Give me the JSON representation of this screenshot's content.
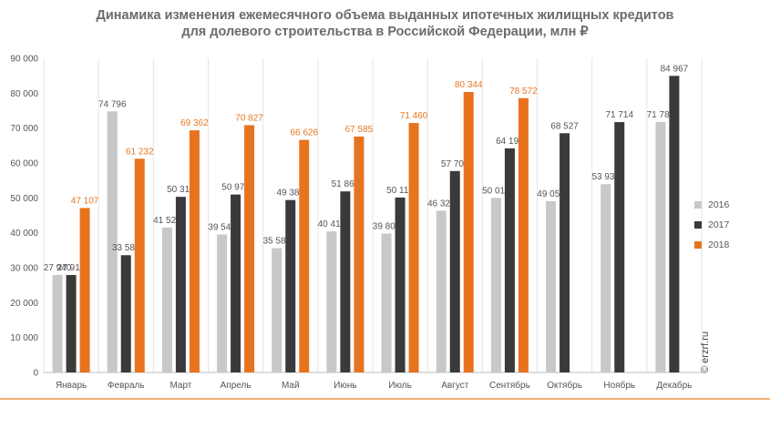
{
  "chart_data": {
    "type": "bar",
    "title_line1": "Динамика изменения ежемесячного объема выданных ипотечных жилищных кредитов",
    "title_line2": "для долевого строительства  в Российской Федерации, млн ₽",
    "categories": [
      "Январь",
      "Февраль",
      "Март",
      "Апрель",
      "Май",
      "Июнь",
      "Июль",
      "Август",
      "Сентябрь",
      "Октябрь",
      "Ноябрь",
      "Декабрь"
    ],
    "series": [
      {
        "name": "2016",
        "color": "#c8c8c8",
        "values": [
          27940,
          74796,
          41521,
          39548,
          35587,
          40414,
          39809,
          46327,
          50019,
          49058,
          53936,
          71781
        ],
        "labels": [
          "27 940",
          "74 796",
          "41 521",
          "39 548",
          "35 587",
          "40 414",
          "39 809",
          "46 327",
          "50 019",
          "49 058",
          "53 936",
          "71 781"
        ]
      },
      {
        "name": "2017",
        "color": "#3a3a3a",
        "values": [
          27910,
          33587,
          50310,
          50976,
          49389,
          51864,
          50110,
          57700,
          64190,
          68527,
          71714,
          84967
        ],
        "labels": [
          "27 910",
          "33 587",
          "50 310",
          "50 976",
          "49 389",
          "51 864",
          "50 110",
          "57 700",
          "64 190",
          "68 527",
          "71 714",
          "84 967"
        ]
      },
      {
        "name": "2018",
        "color": "#e8731e",
        "values": [
          47107,
          61232,
          69362,
          70827,
          66626,
          67585,
          71460,
          80344,
          78572,
          null,
          null,
          null
        ],
        "labels": [
          "47 107",
          "61 232",
          "69 362",
          "70 827",
          "66 626",
          "67 585",
          "71 460",
          "80 344",
          "78 572",
          "",
          "",
          ""
        ]
      }
    ],
    "ylim": [
      0,
      90000
    ],
    "yticks": [
      0,
      10000,
      20000,
      30000,
      40000,
      50000,
      60000,
      70000,
      80000,
      90000
    ],
    "ytick_labels": [
      "0",
      "10 000",
      "20 000",
      "30 000",
      "40 000",
      "50 000",
      "60 000",
      "70 000",
      "80 000",
      "90 000"
    ],
    "grid": "vertical",
    "legend": "right",
    "xlabel": "",
    "ylabel": ""
  },
  "copyright": "© erzrf.ru"
}
